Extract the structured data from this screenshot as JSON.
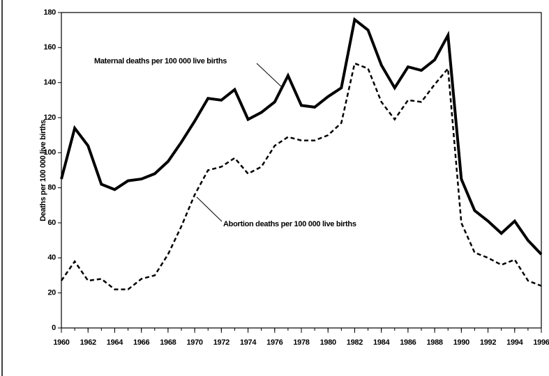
{
  "chart_data": {
    "type": "line",
    "y_label": "Deaths per 100 000 live births",
    "x": [
      1960,
      1961,
      1962,
      1963,
      1964,
      1965,
      1966,
      1967,
      1968,
      1969,
      1970,
      1971,
      1972,
      1973,
      1974,
      1975,
      1976,
      1977,
      1978,
      1979,
      1980,
      1981,
      1982,
      1983,
      1984,
      1985,
      1986,
      1987,
      1988,
      1989,
      1990,
      1991,
      1992,
      1993,
      1994,
      1995,
      1996
    ],
    "series": [
      {
        "name": "Maternal deaths per 100 000 live births",
        "color": "#000000",
        "dash": false,
        "values": [
          85,
          114,
          104,
          82,
          79,
          84,
          85,
          88,
          95,
          106,
          118,
          131,
          130,
          136,
          119,
          123,
          129,
          144,
          127,
          126,
          132,
          137,
          176,
          170,
          150,
          137,
          149,
          147,
          153,
          167,
          85,
          67,
          61,
          54,
          61,
          50,
          42
        ]
      },
      {
        "name": "Abortion deaths per 100 000 live births",
        "color": "#000000",
        "dash": true,
        "values": [
          27,
          38,
          27,
          28,
          22,
          22,
          28,
          30,
          42,
          58,
          76,
          90,
          92,
          97,
          88,
          92,
          104,
          109,
          107,
          107,
          110,
          117,
          151,
          148,
          129,
          119,
          130,
          129,
          139,
          148,
          60,
          43,
          40,
          36,
          39,
          27,
          24
        ]
      }
    ],
    "xlim": [
      1960,
      1996
    ],
    "xticks": [
      1960,
      1962,
      1964,
      1966,
      1968,
      1970,
      1972,
      1974,
      1976,
      1978,
      1980,
      1982,
      1984,
      1986,
      1988,
      1990,
      1992,
      1994,
      1996
    ],
    "ylim": [
      0,
      180
    ],
    "yticks": [
      0,
      20,
      40,
      60,
      80,
      100,
      120,
      140,
      160,
      180
    ],
    "grid": false
  }
}
